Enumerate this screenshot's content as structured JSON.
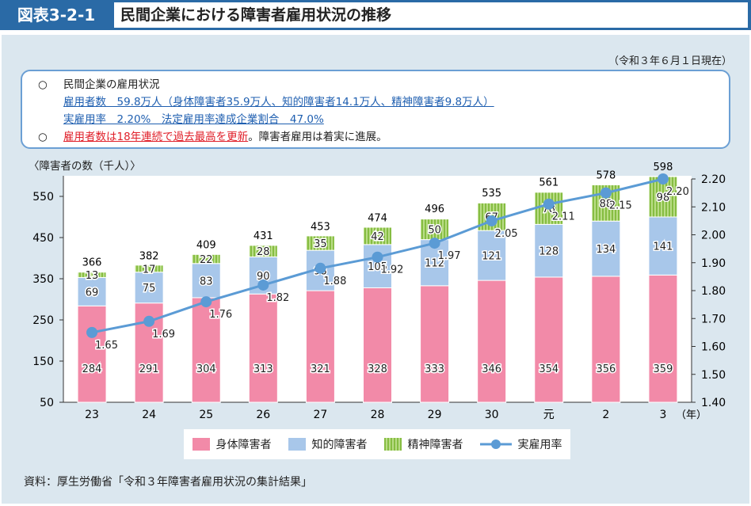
{
  "header": {
    "figure_number": "図表3-2-1",
    "title": "民間企業における障害者雇用状況の推移"
  },
  "as_of": "（令和３年６月１日現在）",
  "info": {
    "bullet": "○",
    "heading": "民間企業の雇用状況",
    "line1": "雇用者数　59.8万人（身体障害者35.9万人、知的障害者14.1万人、精神障害者9.8万人）",
    "line2": "実雇用率　2.20%　法定雇用率達成企業割合　47.0%",
    "line3_red": "雇用者数は18年連続で過去最高を更新",
    "line3_rest": "。障害者雇用は着実に進展。"
  },
  "source": "資料：厚生労働省「令和３年障害者雇用状況の集計結果」",
  "colors": {
    "physical": "#f28aa8",
    "intellectual": "#a8c7ea",
    "mental": "#9dcb5c",
    "rate": "#5b9bd5"
  },
  "chart_data": {
    "type": "bar",
    "stacked": true,
    "ylabel": "〈障害者の数（千人）〉",
    "xlabel_unit": "（年）",
    "categories": [
      "23",
      "24",
      "25",
      "26",
      "27",
      "28",
      "29",
      "30",
      "元",
      "2",
      "3"
    ],
    "ylim": [
      50,
      600
    ],
    "yticks": [
      50,
      150,
      250,
      350,
      450,
      550
    ],
    "y2lim": [
      1.4,
      2.2
    ],
    "y2ticks": [
      "1.40",
      "1.50",
      "1.60",
      "1.70",
      "1.80",
      "1.90",
      "2.00",
      "2.10",
      "2.20"
    ],
    "series": [
      {
        "name": "身体障害者",
        "values": [
          284,
          291,
          304,
          313,
          321,
          328,
          333,
          346,
          354,
          356,
          359
        ]
      },
      {
        "name": "知的障害者",
        "values": [
          69,
          75,
          83,
          90,
          98,
          105,
          112,
          121,
          128,
          134,
          141
        ]
      },
      {
        "name": "精神障害者",
        "values": [
          13,
          17,
          22,
          28,
          35,
          42,
          50,
          67,
          78,
          88,
          98
        ]
      }
    ],
    "totals": [
      366,
      382,
      409,
      431,
      453,
      474,
      496,
      535,
      561,
      578,
      598
    ],
    "line": {
      "name": "実雇用率",
      "axis": "right",
      "values": [
        1.65,
        1.69,
        1.76,
        1.82,
        1.88,
        1.92,
        1.97,
        2.05,
        2.11,
        2.15,
        2.2
      ]
    },
    "legend": "bottom"
  }
}
